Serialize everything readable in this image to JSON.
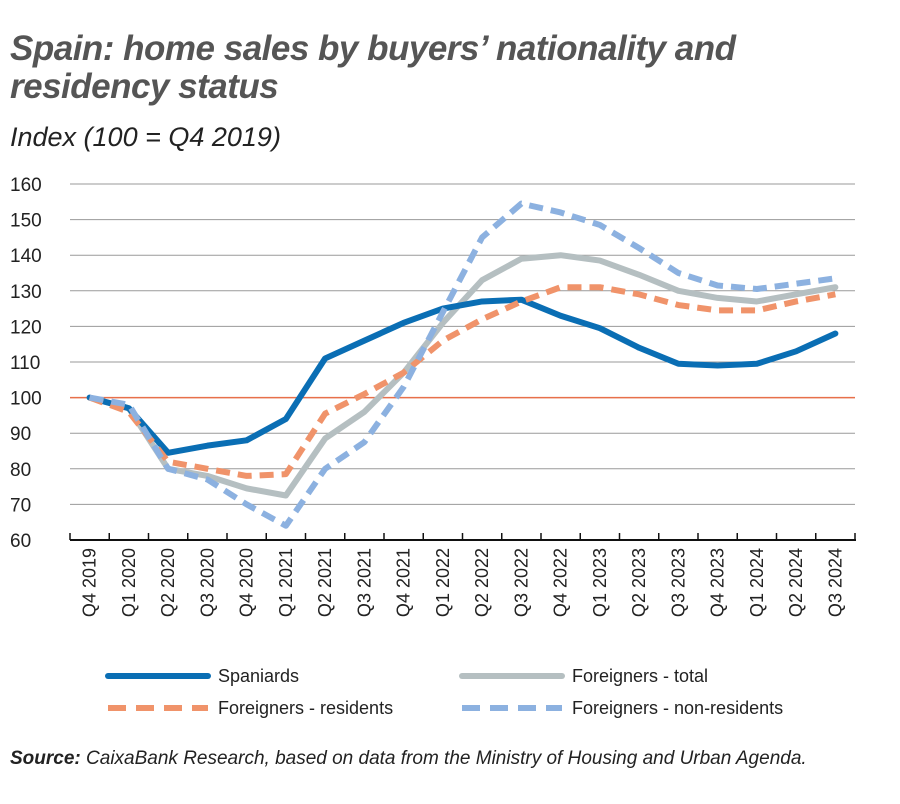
{
  "title": "Spain: home sales by buyers’ nationality and residency status",
  "subtitle": "Index (100 = Q4 2019)",
  "source_label": "Source:",
  "source_text": " CaixaBank Research, based on data from the Ministry of Housing and Urban Agenda.",
  "chart_data": {
    "type": "line",
    "title": "Spain: home sales by buyers’ nationality and residency status",
    "ylabel": "Index (100 = Q4 2019)",
    "ylim": [
      60,
      160
    ],
    "yticks": [
      60,
      70,
      80,
      90,
      100,
      110,
      120,
      130,
      140,
      150,
      160
    ],
    "grid": true,
    "reference_line": 100,
    "legend_position": "bottom",
    "categories": [
      "Q4 2019",
      "Q1 2020",
      "Q2 2020",
      "Q3 2020",
      "Q4 2020",
      "Q1 2021",
      "Q2 2021",
      "Q3 2021",
      "Q4 2021",
      "Q1 2022",
      "Q2 2022",
      "Q3 2022",
      "Q4 2022",
      "Q1 2023",
      "Q2 2023",
      "Q3 2023",
      "Q4 2023",
      "Q1 2024",
      "Q2 2024",
      "Q3 2024"
    ],
    "series": [
      {
        "name": "Spaniards",
        "color": "#0a6eb4",
        "dash": false,
        "values": [
          100,
          97,
          84.5,
          86.5,
          88,
          94,
          111,
          116,
          121,
          125,
          127,
          127.5,
          123,
          119.5,
          114,
          109.5,
          109,
          109.5,
          113,
          118
        ]
      },
      {
        "name": "Foreigners - total",
        "color": "#b5bfc1",
        "dash": false,
        "values": [
          100,
          97,
          80,
          78,
          74.5,
          72.5,
          88.5,
          96,
          107,
          121,
          133,
          139,
          140,
          138.5,
          134.5,
          130,
          128,
          127,
          129,
          131
        ]
      },
      {
        "name": "Foreigners - residents",
        "color": "#f0936a",
        "dash": true,
        "values": [
          100,
          96,
          82,
          80,
          78,
          78.5,
          95.5,
          101,
          107,
          116,
          122,
          127,
          131,
          131,
          129,
          126,
          124.5,
          124.5,
          127,
          129
        ]
      },
      {
        "name": "Foreigners - non-residents",
        "color": "#8cb1e0",
        "dash": true,
        "values": [
          100,
          98,
          80,
          77,
          70,
          64,
          80,
          87.5,
          103,
          124,
          145,
          154.5,
          152,
          148.5,
          142,
          135,
          131.5,
          130.5,
          132,
          133.5
        ]
      }
    ],
    "reference_color": "#e8704a"
  }
}
